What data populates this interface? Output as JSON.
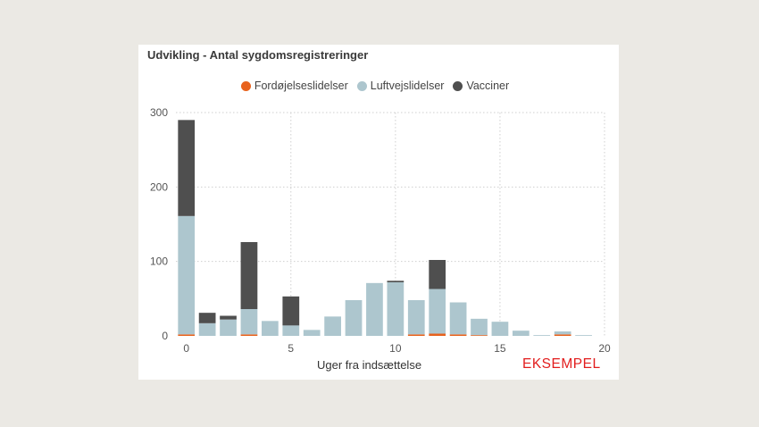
{
  "chart_data": {
    "type": "bar",
    "stacked": true,
    "title": "Udvikling - Antal sygdomsregistreringer",
    "xlabel": "Uger fra indsættelse",
    "ylabel": "",
    "xlim": [
      -0.5,
      20
    ],
    "ylim": [
      0,
      300
    ],
    "x_ticks": [
      0,
      5,
      10,
      15,
      20
    ],
    "y_ticks": [
      0,
      100,
      200,
      300
    ],
    "grid": true,
    "legend_position": "top-center",
    "x": [
      0,
      1,
      2,
      3,
      4,
      5,
      6,
      7,
      8,
      9,
      10,
      11,
      12,
      13,
      14,
      15,
      16,
      17,
      18,
      19
    ],
    "series": [
      {
        "name": "Fordøjelseslidelser",
        "color": "#e8621d",
        "values": [
          2,
          0,
          0,
          2,
          0,
          0,
          0,
          0,
          0,
          0,
          0,
          2,
          3,
          2,
          1,
          0,
          0,
          0,
          2,
          0
        ]
      },
      {
        "name": "Luftvejslidelser",
        "color": "#adc6ce",
        "values": [
          159,
          17,
          22,
          34,
          20,
          14,
          8,
          26,
          48,
          71,
          72,
          46,
          60,
          43,
          22,
          19,
          7,
          1,
          4,
          1
        ]
      },
      {
        "name": "Vacciner",
        "color": "#4f4f4f",
        "values": [
          129,
          14,
          5,
          90,
          0,
          39,
          0,
          0,
          0,
          0,
          2,
          0,
          39,
          0,
          0,
          0,
          0,
          0,
          0,
          0
        ]
      }
    ]
  },
  "watermark": "EKSEMPEL"
}
